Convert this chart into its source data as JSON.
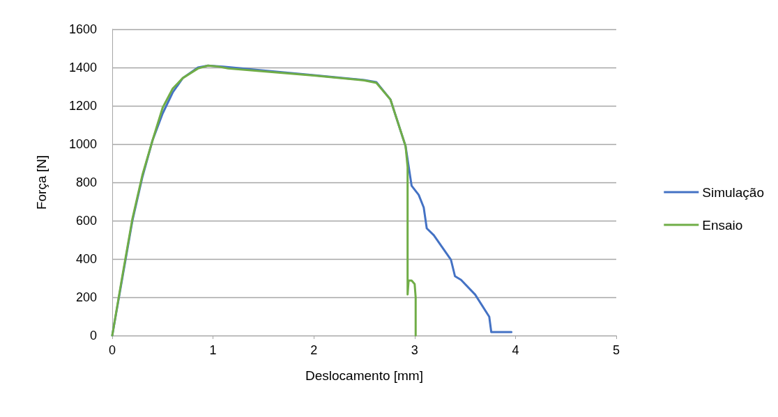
{
  "chart_data": {
    "type": "line",
    "xlabel": "Deslocamento [mm]",
    "ylabel": "Força [N]",
    "xlim": [
      0,
      5
    ],
    "xticks": [
      0,
      1,
      2,
      3,
      4,
      5
    ],
    "ylim": [
      0,
      1600
    ],
    "yticks": [
      0,
      200,
      400,
      600,
      800,
      1000,
      1200,
      1400,
      1600
    ],
    "grid": "y",
    "legend": "right",
    "marker": "none",
    "line_style": "solid",
    "series": [
      {
        "name": "Simulação",
        "color": "#4472c4",
        "x": [
          0,
          0.1,
          0.2,
          0.3,
          0.4,
          0.5,
          0.6,
          0.7,
          0.85,
          0.95,
          1.1,
          1.5,
          2.0,
          2.5,
          2.62,
          2.76,
          2.91,
          2.97,
          3.04,
          3.09,
          3.12,
          3.19,
          3.36,
          3.4,
          3.46,
          3.6,
          3.74,
          3.76,
          3.96
        ],
        "values": [
          0,
          300,
          600,
          830,
          1020,
          1160,
          1270,
          1345,
          1400,
          1410,
          1405,
          1385,
          1360,
          1335,
          1324,
          1233,
          989,
          782,
          735,
          669,
          560,
          524,
          396,
          310,
          291,
          214,
          98,
          18,
          18
        ]
      },
      {
        "name": "Ensaio",
        "color": "#70ad47",
        "x": [
          0,
          0.1,
          0.2,
          0.3,
          0.4,
          0.5,
          0.6,
          0.7,
          0.85,
          0.95,
          1.05,
          1.15,
          1.5,
          2.0,
          2.5,
          2.62,
          2.76,
          2.91,
          2.93,
          2.93,
          2.94,
          2.97,
          3.0,
          3.01,
          3.01
        ],
        "values": [
          0,
          310,
          610,
          840,
          1020,
          1190,
          1290,
          1345,
          1395,
          1410,
          1405,
          1395,
          1380,
          1358,
          1333,
          1320,
          1233,
          989,
          880,
          215,
          287,
          287,
          269,
          200,
          0
        ]
      }
    ]
  }
}
